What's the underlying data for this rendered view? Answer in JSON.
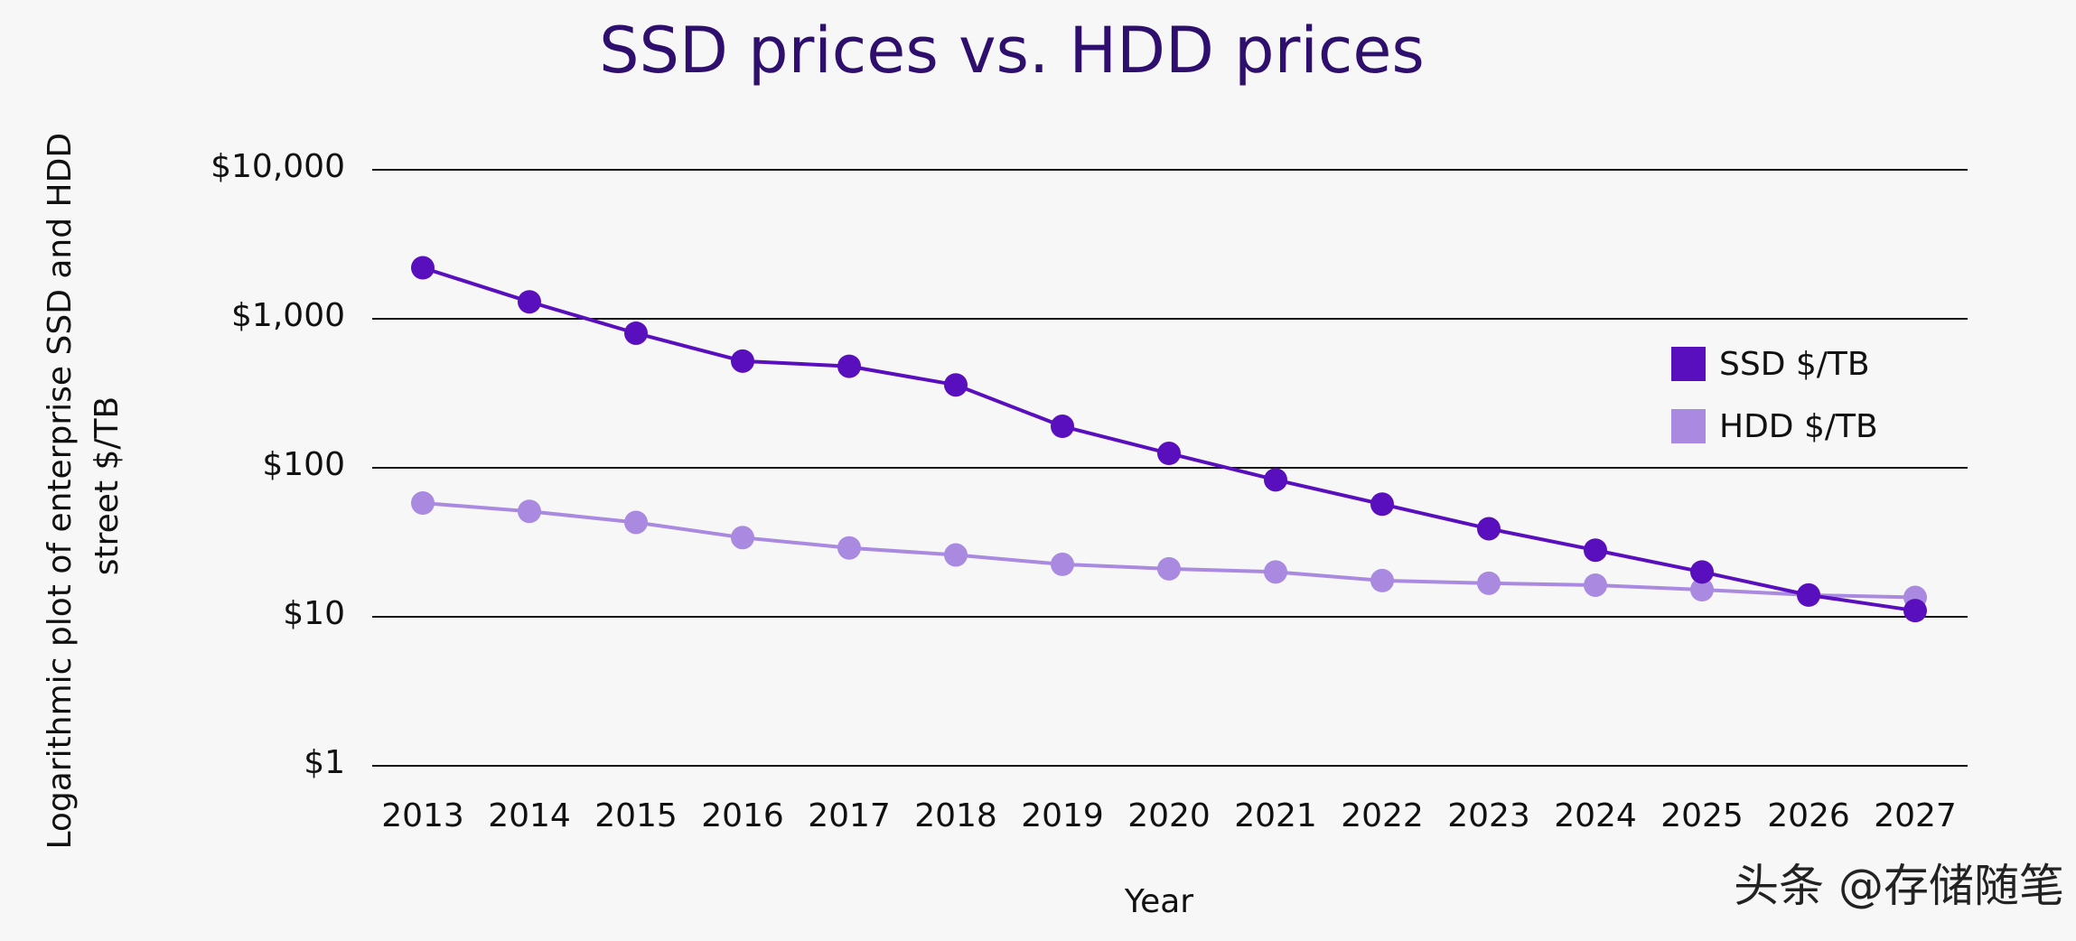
{
  "chart_data": {
    "type": "line",
    "title": "SSD prices vs. HDD prices",
    "xlabel": "Year",
    "ylabel": "Logarithmic plot of enterprise SSD and HDD street $/TB",
    "ylabel_lines": [
      "Logarithmic plot of enterprise SSD and HDD",
      "street $/TB"
    ],
    "y_scale": "log",
    "ylim": [
      1,
      10000
    ],
    "y_ticks": [
      {
        "value": 10000,
        "label": "$10,000"
      },
      {
        "value": 1000,
        "label": "$1,000"
      },
      {
        "value": 100,
        "label": "$100"
      },
      {
        "value": 10,
        "label": "$10"
      },
      {
        "value": 1,
        "label": "$1"
      }
    ],
    "grid": true,
    "legend_position": "right",
    "categories": [
      "2013",
      "2014",
      "2015",
      "2016",
      "2017",
      "2018",
      "2019",
      "2020",
      "2021",
      "2022",
      "2023",
      "2024",
      "2025",
      "2026",
      "2027"
    ],
    "series": [
      {
        "name": "SSD $/TB",
        "color": "#5a0fbf",
        "values": [
          2200,
          1300,
          800,
          520,
          480,
          360,
          190,
          125,
          83,
          57,
          39,
          28,
          20,
          14,
          11
        ]
      },
      {
        "name": "HDD $/TB",
        "color": "#a98ae0",
        "values": [
          58,
          51,
          43,
          34,
          29,
          26,
          22.5,
          21,
          20,
          17.5,
          16.8,
          16.3,
          15.2,
          14,
          13.5
        ]
      }
    ]
  },
  "watermark": "头条 @存储随笔"
}
